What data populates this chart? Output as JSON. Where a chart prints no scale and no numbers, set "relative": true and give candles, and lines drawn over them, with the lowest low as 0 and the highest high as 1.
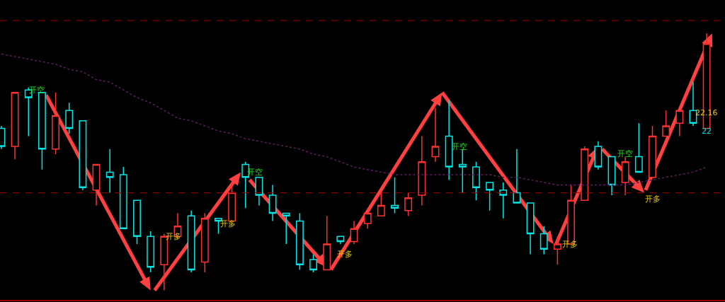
{
  "chart_data": {
    "type": "candlestick",
    "relative": true,
    "categories": [
      null,
      null,
      null,
      null,
      null,
      null,
      null,
      null,
      null,
      null,
      null,
      null,
      null,
      null,
      null,
      null,
      null,
      null,
      null,
      null,
      null,
      null,
      null,
      null,
      null,
      null,
      null,
      null,
      null,
      null,
      null,
      null,
      null,
      null,
      null,
      null,
      null,
      null,
      null,
      null,
      null,
      null,
      null,
      null,
      null,
      null,
      null,
      null,
      null,
      null,
      null,
      null,
      null
    ],
    "ohlc": [
      [
        0.63,
        0.64,
        0.55,
        0.56
      ],
      [
        0.56,
        0.77,
        0.51,
        0.77
      ],
      [
        0.78,
        0.79,
        0.6,
        0.75
      ],
      [
        0.77,
        0.77,
        0.47,
        0.55
      ],
      [
        0.55,
        0.77,
        0.53,
        0.68
      ],
      [
        0.7,
        0.73,
        0.61,
        0.63
      ],
      [
        0.66,
        0.66,
        0.39,
        0.4
      ],
      [
        0.39,
        0.49,
        0.33,
        0.49
      ],
      [
        0.46,
        0.55,
        0.38,
        0.44
      ],
      [
        0.45,
        0.48,
        0.24,
        0.24
      ],
      [
        0.35,
        0.35,
        0.18,
        0.21
      ],
      [
        0.21,
        0.23,
        0.07,
        0.09
      ],
      [
        0.1,
        0.22,
        0,
        0.21
      ],
      [
        0.21,
        0.3,
        0.2,
        0.25
      ],
      [
        0.29,
        0.31,
        0.07,
        0.08
      ],
      [
        0.11,
        0.3,
        0.07,
        0.28
      ],
      [
        0.28,
        0.28,
        0.22,
        0.27
      ],
      [
        0.27,
        0.42,
        0.27,
        0.38
      ],
      [
        0.49,
        0.5,
        0.32,
        0.44
      ],
      [
        0.44,
        0.44,
        0.33,
        0.37
      ],
      [
        0.37,
        0.41,
        0.27,
        0.3
      ],
      [
        0.3,
        0.3,
        0.18,
        0.29
      ],
      [
        0.27,
        0.3,
        0.08,
        0.1
      ],
      [
        0.12,
        0.14,
        0.07,
        0.08
      ],
      [
        0.08,
        0.29,
        0.08,
        0.18
      ],
      [
        0.21,
        0.21,
        0.18,
        0.19
      ],
      [
        0.19,
        0.27,
        0.18,
        0.24
      ],
      [
        0.26,
        0.3,
        0.24,
        0.3
      ],
      [
        0.29,
        0.38,
        0.29,
        0.33
      ],
      [
        0.33,
        0.44,
        0.3,
        0.32
      ],
      [
        0.31,
        0.38,
        0.29,
        0.36
      ],
      [
        0.37,
        0.6,
        0.33,
        0.5
      ],
      [
        0.52,
        0.71,
        0.5,
        0.56
      ],
      [
        0.6,
        0.74,
        0.43,
        0.48
      ],
      [
        0.49,
        0.55,
        0.38,
        0.48
      ],
      [
        0.48,
        0.5,
        0.35,
        0.4
      ],
      [
        0.42,
        0.42,
        0.31,
        0.39
      ],
      [
        0.39,
        0.42,
        0.28,
        0.37
      ],
      [
        0.38,
        0.55,
        0.34,
        0.34
      ],
      [
        0.34,
        0.34,
        0.14,
        0.22
      ],
      [
        0.22,
        0.25,
        0.14,
        0.16
      ],
      [
        0.16,
        0.21,
        0.1,
        0.18
      ],
      [
        0.18,
        0.41,
        0.18,
        0.35
      ],
      [
        0.35,
        0.56,
        0.35,
        0.55
      ],
      [
        0.56,
        0.58,
        0.47,
        0.48
      ],
      [
        0.52,
        0.52,
        0.37,
        0.41
      ],
      [
        0.42,
        0.52,
        0.37,
        0.5
      ],
      [
        0.52,
        0.65,
        0.46,
        0.46
      ],
      [
        0.44,
        0.64,
        0.44,
        0.6
      ],
      [
        0.6,
        0.7,
        0.6,
        0.64
      ],
      [
        0.65,
        0.7,
        0.6,
        0.7
      ],
      [
        0.7,
        0.81,
        0.64,
        0.65
      ],
      [
        0.63,
        1,
        0.63,
        0.96
      ]
    ],
    "colors": [
      "#00e5e5",
      "#ff3030",
      "#00e5e5",
      "#00e5e5",
      "#ff3030",
      "#00e5e5",
      "#00e5e5",
      "#ff3030",
      "#00e5e5",
      "#00e5e5",
      "#00e5e5",
      "#00e5e5",
      "#ff3030",
      "#ff3030",
      "#00e5e5",
      "#ff3030",
      "#00e5e5",
      "#ff3030",
      "#00e5e5",
      "#00e5e5",
      "#00e5e5",
      "#00e5e5",
      "#00e5e5",
      "#00e5e5",
      "#ff3030",
      "#00e5e5",
      "#ff3030",
      "#ff3030",
      "#ff3030",
      "#00e5e5",
      "#ff3030",
      "#ff3030",
      "#ff3030",
      "#00e5e5",
      "#00e5e5",
      "#00e5e5",
      "#00e5e5",
      "#00e5e5",
      "#00e5e5",
      "#00e5e5",
      "#00e5e5",
      "#ff3030",
      "#ff3030",
      "#ff3030",
      "#00e5e5",
      "#00e5e5",
      "#ff3030",
      "#00e5e5",
      "#ff3030",
      "#ff3030",
      "#ff3030",
      "#00e5e5",
      "#ff3030"
    ],
    "series": [
      {
        "type": "line",
        "color": "#5a1e5a",
        "line_style": "dotted",
        "values": [
          0.92,
          0.91,
          0.9,
          0.89,
          0.88,
          0.86,
          0.85,
          0.82,
          0.81,
          0.78,
          0.75,
          0.73,
          0.7,
          0.67,
          0.66,
          0.64,
          0.62,
          0.61,
          0.59,
          0.58,
          0.57,
          0.56,
          0.55,
          0.53,
          0.52,
          0.5,
          0.48,
          0.47,
          0.46,
          0.45,
          0.45,
          0.45,
          0.45,
          0.45,
          0.45,
          0.45,
          0.45,
          0.44,
          0.44,
          0.43,
          0.42,
          0.41,
          0.41,
          0.41,
          0.41,
          0.41,
          0.41,
          0.42,
          0.43,
          0.44,
          0.45,
          0.46,
          0.48
        ]
      }
    ],
    "ref_lines": [
      {
        "axis": "y",
        "value": 0.38,
        "color": "#a00000",
        "line_style": "dashed"
      },
      {
        "axis": "y",
        "value": 1.05,
        "color": "#a00000",
        "line_style": "dashed"
      }
    ],
    "annotations": [
      "开空",
      "开多",
      "开多",
      "开空",
      "开多",
      "开空",
      "开多",
      "开空",
      "开多",
      "22.16",
      "22"
    ]
  }
}
